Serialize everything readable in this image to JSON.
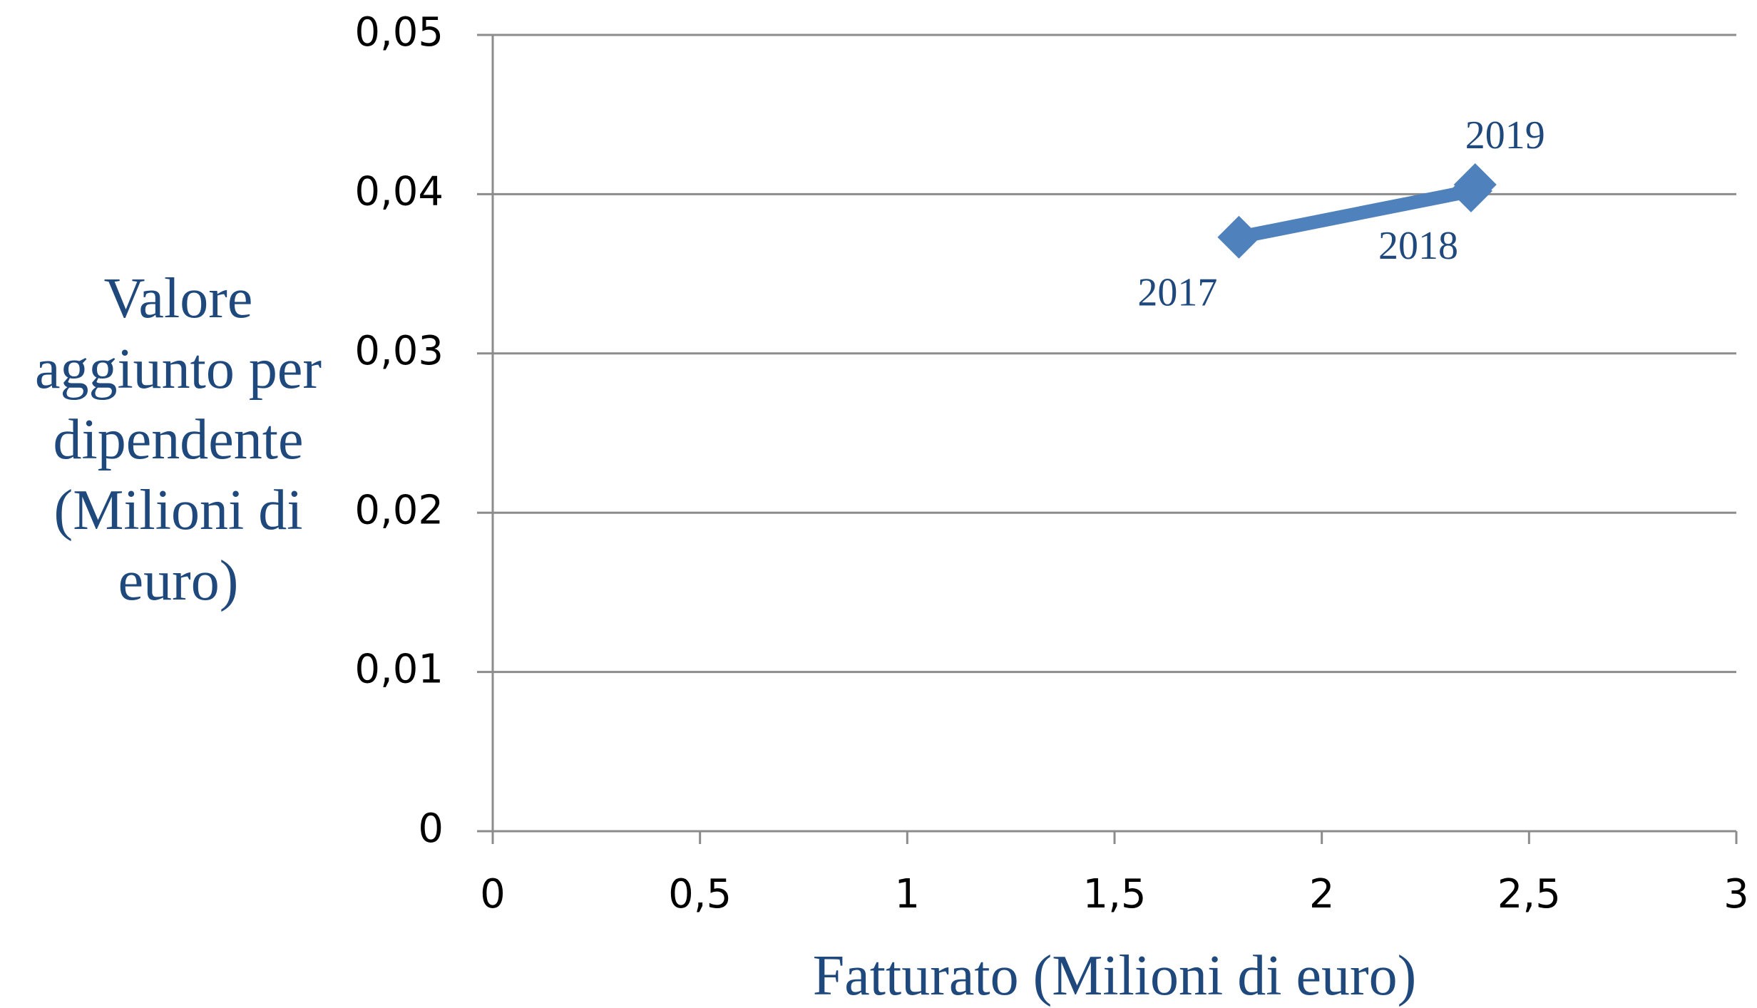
{
  "chart_data": {
    "type": "line",
    "x_label": "Fatturato (Milioni di euro)",
    "y_label": "Valore aggiunto per dipendente (Milioni di euro)",
    "series": [
      {
        "color": "#4f81bd",
        "x": [
          1.8,
          2.36,
          2.37
        ],
        "values": [
          0.0373,
          0.0402,
          0.0406
        ],
        "labels": [
          "2017",
          "2018",
          "2019"
        ]
      }
    ],
    "xlim": [
      0,
      3
    ],
    "xticks": [
      0,
      {
        "value": 0.5,
        "label": "0,5"
      },
      1,
      {
        "value": 1.5,
        "label": "1,5"
      },
      2,
      {
        "value": 2.5,
        "label": "2,5"
      },
      3
    ],
    "ylim": [
      0,
      0.05
    ],
    "yticks": [
      0,
      {
        "value": 0.01,
        "label": "0,01"
      },
      {
        "value": 0.02,
        "label": "0,02"
      },
      {
        "value": 0.03,
        "label": "0,03"
      },
      {
        "value": 0.04,
        "label": "0,04"
      },
      {
        "value": 0.05,
        "label": "0,05"
      }
    ],
    "grid": true
  }
}
